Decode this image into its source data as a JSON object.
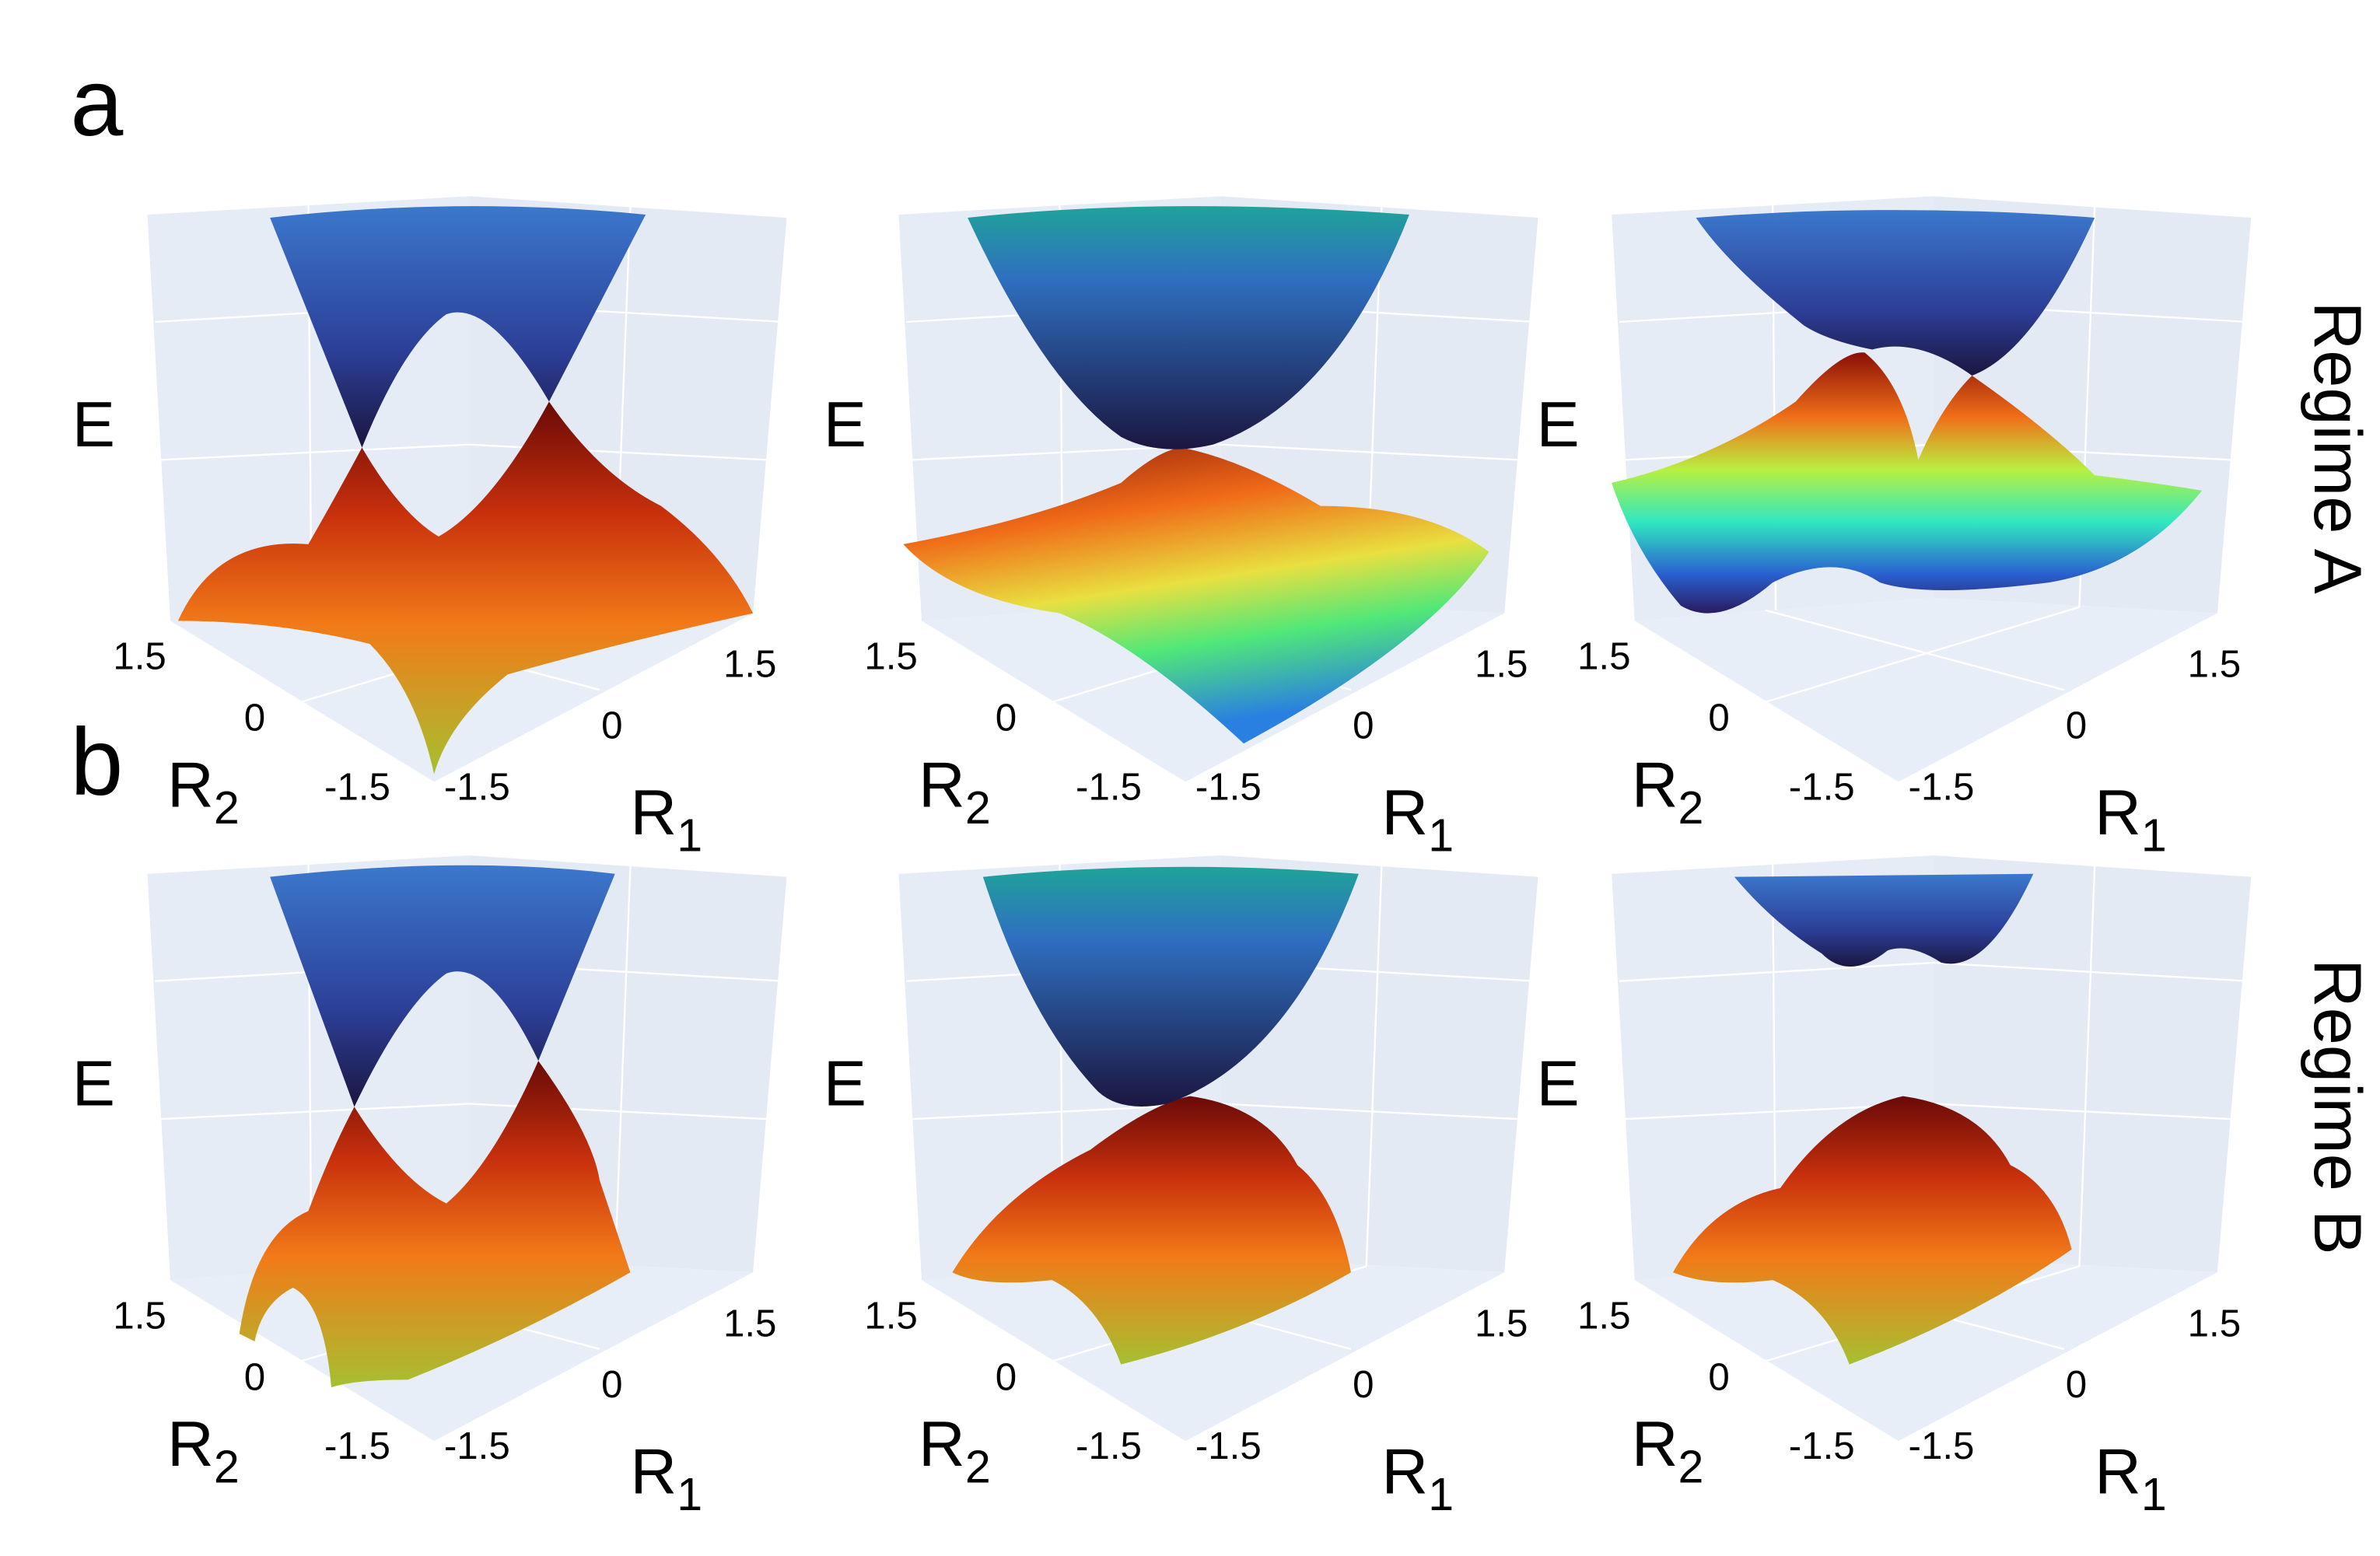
{
  "figure": {
    "rows": [
      {
        "letter": "a",
        "regime": "Regime A",
        "plots": [
          {
            "z_label": "E",
            "x_label": {
              "base": "R",
              "sub": "1"
            },
            "y_label": {
              "base": "R",
              "sub": "2"
            },
            "x_ticks": [
              "-1.5",
              "0",
              "1.5"
            ],
            "y_ticks": [
              "1.5",
              "0",
              "-1.5"
            ]
          },
          {
            "z_label": "E",
            "x_label": {
              "base": "R",
              "sub": "1"
            },
            "y_label": {
              "base": "R",
              "sub": "2"
            },
            "x_ticks": [
              "-1.5",
              "0",
              "1.5"
            ],
            "y_ticks": [
              "1.5",
              "0",
              "-1.5"
            ]
          },
          {
            "z_label": "E",
            "x_label": {
              "base": "R",
              "sub": "1"
            },
            "y_label": {
              "base": "R",
              "sub": "2"
            },
            "x_ticks": [
              "-1.5",
              "0",
              "1.5"
            ],
            "y_ticks": [
              "1.5",
              "0",
              "-1.5"
            ]
          }
        ]
      },
      {
        "letter": "b",
        "regime": "Regime B",
        "plots": [
          {
            "z_label": "E",
            "x_label": {
              "base": "R",
              "sub": "1"
            },
            "y_label": {
              "base": "R",
              "sub": "2"
            },
            "x_ticks": [
              "-1.5",
              "0",
              "1.5"
            ],
            "y_ticks": [
              "1.5",
              "0",
              "-1.5"
            ]
          },
          {
            "z_label": "E",
            "x_label": {
              "base": "R",
              "sub": "1"
            },
            "y_label": {
              "base": "R",
              "sub": "2"
            },
            "x_ticks": [
              "-1.5",
              "0",
              "1.5"
            ],
            "y_ticks": [
              "1.5",
              "0",
              "-1.5"
            ]
          },
          {
            "z_label": "E",
            "x_label": {
              "base": "R",
              "sub": "1"
            },
            "y_label": {
              "base": "R",
              "sub": "2"
            },
            "x_ticks": [
              "-1.5",
              "0",
              "1.5"
            ],
            "y_ticks": [
              "1.5",
              "0",
              "-1.5"
            ]
          }
        ]
      }
    ]
  }
}
